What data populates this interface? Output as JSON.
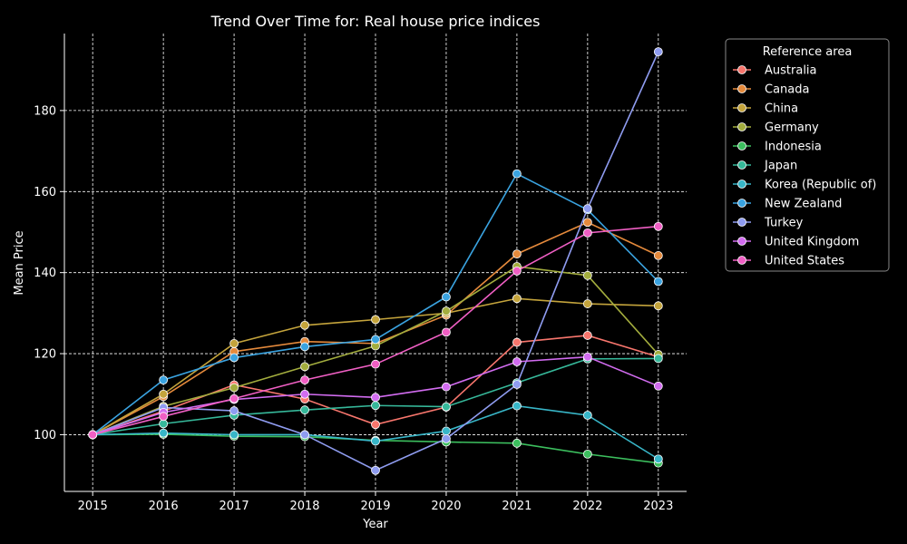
{
  "chart_data": {
    "type": "line",
    "title": "Trend Over Time for: Real house price indices",
    "xlabel": "Year",
    "ylabel": "Mean Price",
    "x": [
      2015,
      2016,
      2017,
      2018,
      2019,
      2020,
      2021,
      2022,
      2023
    ],
    "xlim": [
      2014.6,
      2023.4
    ],
    "ylim": [
      86,
      199
    ],
    "yticks": [
      100,
      120,
      140,
      160,
      180
    ],
    "grid": true,
    "background": "#000000",
    "legend": {
      "title": "Reference area",
      "position": "outside-right-top"
    },
    "series": [
      {
        "name": "Australia",
        "color": "#f8766d",
        "values": [
          100,
          105.8,
          112.3,
          108.8,
          102.5,
          106.8,
          122.8,
          124.5,
          119.2
        ]
      },
      {
        "name": "Canada",
        "color": "#e58a3c",
        "values": [
          100,
          109.4,
          120.5,
          123,
          122.5,
          129.5,
          144.6,
          152.4,
          144.2
        ]
      },
      {
        "name": "China",
        "color": "#c4a43c",
        "values": [
          100,
          110,
          122.5,
          127,
          128.4,
          130,
          133.6,
          132.3,
          131.8
        ]
      },
      {
        "name": "Germany",
        "color": "#a3ad3e",
        "values": [
          100,
          107,
          111.6,
          116.8,
          121.9,
          130.5,
          141.5,
          139.3,
          119.8
        ]
      },
      {
        "name": "Indonesia",
        "color": "#3cbf5e",
        "values": [
          100,
          100.1,
          99.6,
          99.5,
          98.6,
          98.2,
          97.9,
          95.2,
          93
        ]
      },
      {
        "name": "Japan",
        "color": "#36b89a",
        "values": [
          100,
          102.7,
          104.8,
          106.1,
          107.2,
          106.9,
          112.8,
          118.7,
          118.8
        ]
      },
      {
        "name": "Korea (Republic of)",
        "color": "#38b6c8",
        "values": [
          100,
          100.4,
          100,
          100,
          98.4,
          100.9,
          107.1,
          104.8,
          94
        ]
      },
      {
        "name": "New Zealand",
        "color": "#3aa3e0",
        "values": [
          100,
          113.5,
          119,
          121.7,
          123.5,
          134,
          164.4,
          155.5,
          137.8
        ]
      },
      {
        "name": "Turkey",
        "color": "#8f9cf0",
        "values": [
          100,
          106.7,
          105.9,
          100,
          91.2,
          99,
          112.4,
          155.8,
          194.5
        ]
      },
      {
        "name": "United Kingdom",
        "color": "#d26cf0",
        "values": [
          100,
          105.5,
          108.7,
          110,
          109.2,
          111.8,
          118,
          119.2,
          112
        ]
      },
      {
        "name": "United States",
        "color": "#f05fc4",
        "values": [
          100,
          104.5,
          108.9,
          113.5,
          117.4,
          125.3,
          140.4,
          149.8,
          151.4
        ]
      }
    ]
  }
}
